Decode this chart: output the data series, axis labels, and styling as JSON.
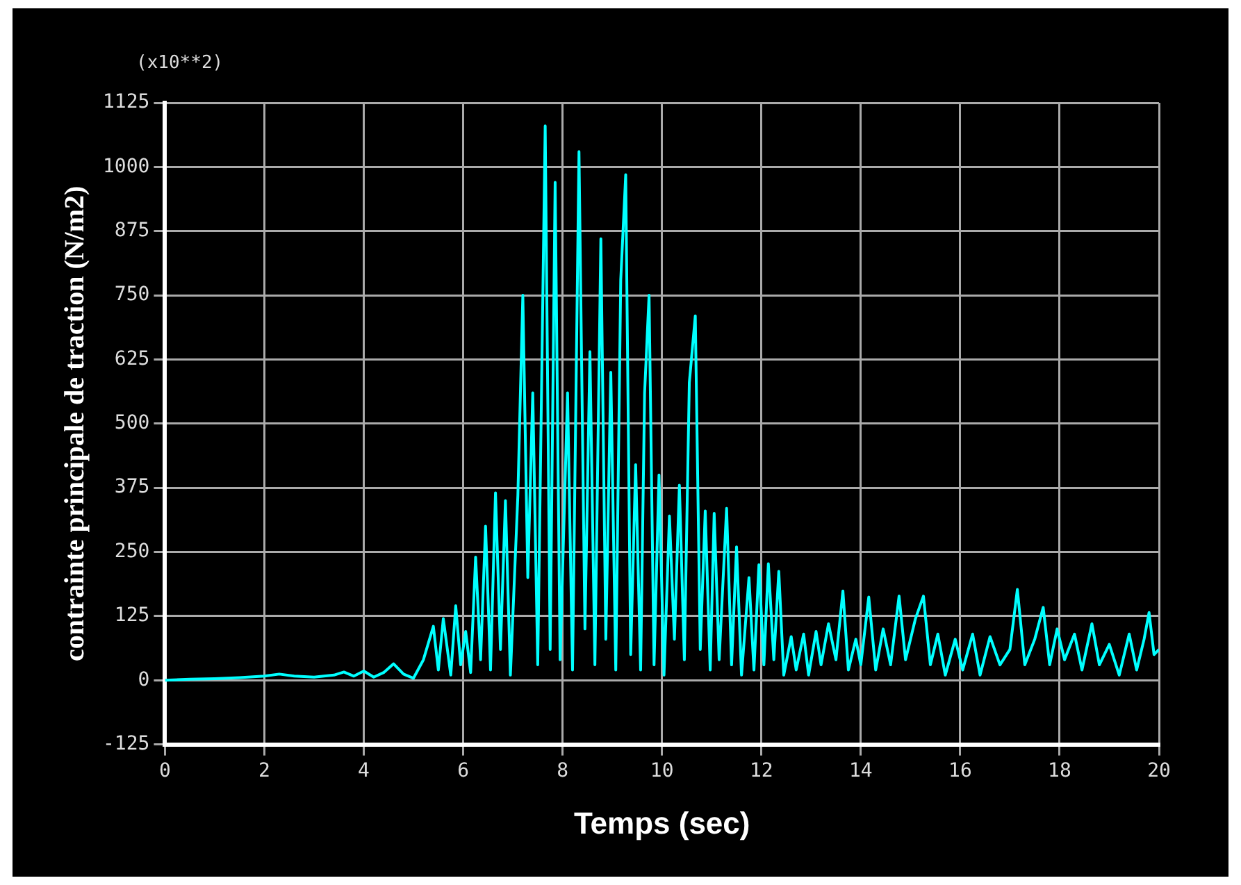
{
  "chart_data": {
    "type": "line",
    "xlabel": "Temps (sec)",
    "ylabel": "contrainte principale de traction (N/m2)",
    "annotations": [
      "(x10**2)"
    ],
    "xlim": [
      0,
      20
    ],
    "xticks": [
      0,
      2,
      4,
      6,
      8,
      10,
      12,
      14,
      16,
      18,
      20
    ],
    "ylim": [
      -125,
      1125
    ],
    "yticks": [
      -125,
      0,
      125,
      250,
      375,
      500,
      625,
      750,
      875,
      1000,
      1125
    ],
    "grid": true,
    "legend": false,
    "marker": "none",
    "line_style": "solid",
    "series": [
      {
        "color": "#00ffff",
        "x": [
          0,
          0.5,
          1,
          1.5,
          2,
          2.3,
          2.6,
          3,
          3.4,
          3.6,
          3.8,
          4,
          4.2,
          4.4,
          4.6,
          4.8,
          5,
          5.2,
          5.4,
          5.5,
          5.6,
          5.75,
          5.85,
          5.95,
          6.05,
          6.15,
          6.25,
          6.35,
          6.45,
          6.55,
          6.65,
          6.75,
          6.85,
          6.95,
          7.1,
          7.2,
          7.3,
          7.4,
          7.5,
          7.65,
          7.75,
          7.85,
          7.95,
          8.1,
          8.2,
          8.33,
          8.45,
          8.55,
          8.65,
          8.77,
          8.87,
          8.97,
          9.07,
          9.17,
          9.27,
          9.37,
          9.47,
          9.57,
          9.65,
          9.74,
          9.84,
          9.94,
          10.04,
          10.15,
          10.25,
          10.35,
          10.45,
          10.55,
          10.67,
          10.77,
          10.87,
          10.97,
          11.05,
          11.15,
          11.3,
          11.4,
          11.5,
          11.6,
          11.75,
          11.85,
          11.95,
          12.05,
          12.14,
          12.25,
          12.35,
          12.45,
          12.6,
          12.7,
          12.85,
          12.95,
          13.1,
          13.2,
          13.35,
          13.5,
          13.64,
          13.75,
          13.9,
          14,
          14.16,
          14.3,
          14.45,
          14.6,
          14.77,
          14.9,
          15.1,
          15.26,
          15.4,
          15.55,
          15.7,
          15.9,
          16.05,
          16.25,
          16.4,
          16.6,
          16.8,
          17,
          17.15,
          17.3,
          17.5,
          17.67,
          17.8,
          17.95,
          18.1,
          18.3,
          18.45,
          18.65,
          18.8,
          19,
          19.2,
          19.4,
          19.55,
          19.7,
          19.8,
          19.9,
          20
        ],
        "values": [
          0,
          2,
          3,
          5,
          8,
          12,
          8,
          6,
          10,
          16,
          8,
          18,
          6,
          15,
          32,
          12,
          4,
          40,
          105,
          20,
          120,
          10,
          145,
          30,
          95,
          15,
          240,
          40,
          300,
          20,
          365,
          60,
          350,
          10,
          360,
          750,
          200,
          560,
          30,
          1080,
          60,
          970,
          40,
          560,
          20,
          1030,
          100,
          640,
          30,
          860,
          80,
          600,
          20,
          780,
          985,
          50,
          420,
          20,
          560,
          750,
          30,
          400,
          10,
          320,
          80,
          380,
          40,
          580,
          710,
          60,
          330,
          20,
          325,
          40,
          335,
          30,
          260,
          10,
          200,
          20,
          225,
          30,
          227,
          40,
          212,
          10,
          85,
          20,
          90,
          10,
          95,
          30,
          110,
          40,
          174,
          20,
          80,
          30,
          162,
          20,
          100,
          30,
          164,
          40,
          120,
          164,
          30,
          90,
          10,
          80,
          20,
          90,
          10,
          85,
          30,
          60,
          177,
          30,
          80,
          142,
          30,
          100,
          40,
          90,
          20,
          110,
          30,
          70,
          10,
          90,
          20,
          80,
          132,
          50,
          60
        ]
      }
    ]
  }
}
